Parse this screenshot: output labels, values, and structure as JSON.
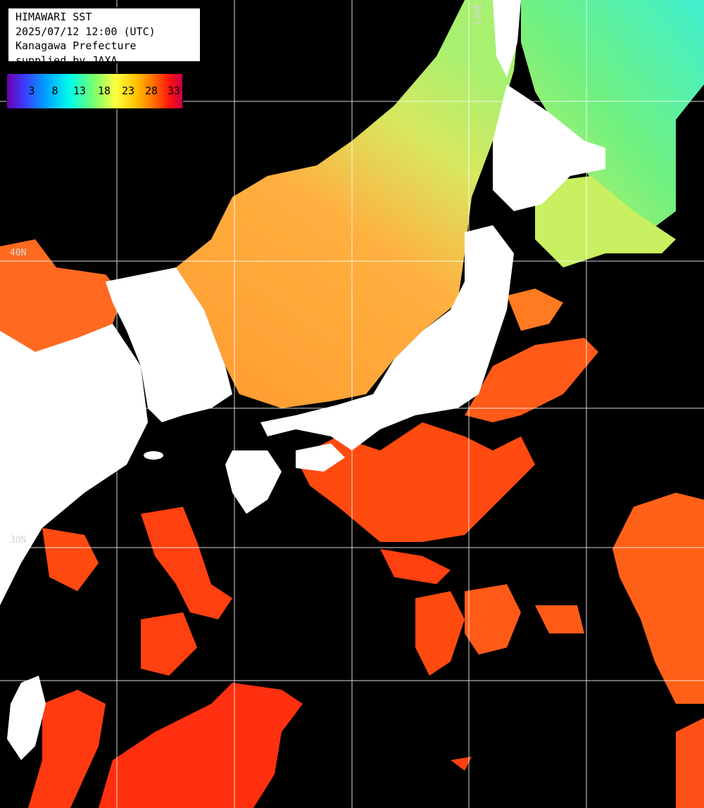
{
  "header": {
    "line1": "HIMAWARI SST",
    "line2": "2025/07/12 12:00 (UTC)",
    "line3": "Kanagawa Prefecture",
    "line4": "supplied by JAXA"
  },
  "legend": {
    "ticks": [
      "3",
      "8",
      "13",
      "18",
      "23",
      "28",
      "33"
    ],
    "colors": [
      "#6a00a8",
      "#3c3cff",
      "#00a0ff",
      "#00ffe8",
      "#7cff6a",
      "#ffff40",
      "#ffc000",
      "#ff6a00",
      "#ff1010",
      "#c8004a"
    ]
  },
  "grid_labels": {
    "lat_40": "40N",
    "lat_30": "30N",
    "lon_140": "140E"
  },
  "colors": {
    "land": "#ffffff",
    "cloud_no_data": "#000000",
    "gridline": "#ffffff"
  }
}
